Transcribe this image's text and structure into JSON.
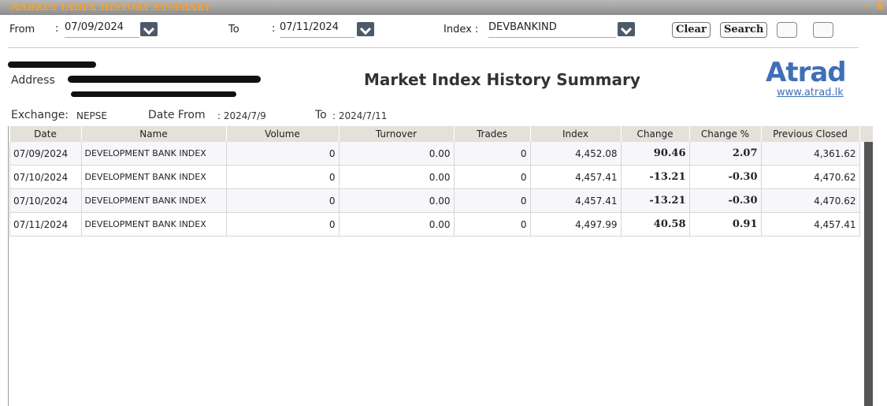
{
  "window": {
    "title": "MARKET INDEX HISTORY SUMMARY",
    "minimize": "-",
    "close": "X"
  },
  "filters": {
    "from": {
      "label": "From",
      "sep": ":",
      "value": "07/09/2024"
    },
    "to": {
      "label": "To",
      "sep": ":",
      "value": "07/11/2024"
    },
    "index": {
      "label": "Index :",
      "value": "DEVBANKIND"
    },
    "clear": "Clear",
    "search": "Search"
  },
  "report": {
    "title": "Market Index History Summary",
    "address_label": "Address",
    "logo": "Atrad",
    "website": "www.atrad.lk",
    "exchange_label": "Exchange:",
    "exchange": "NEPSE",
    "date_from_label": "Date From",
    "date_from": ": 2024/7/9",
    "to_label": "To",
    "to": ": 2024/7/11"
  },
  "table": {
    "columns": [
      "Date",
      "Name",
      "Volume",
      "Turnover",
      "Trades",
      "Index",
      "Change",
      "Change %",
      "Previous Closed"
    ],
    "rows": [
      [
        "07/09/2024",
        "DEVELOPMENT BANK INDEX",
        "0",
        "0.00",
        "0",
        "4,452.08",
        "90.46",
        "2.07",
        "4,361.62"
      ],
      [
        "07/10/2024",
        "DEVELOPMENT BANK INDEX",
        "0",
        "0.00",
        "0",
        "4,457.41",
        "-13.21",
        "-0.30",
        "4,470.62"
      ],
      [
        "07/10/2024",
        "DEVELOPMENT BANK INDEX",
        "0",
        "0.00",
        "0",
        "4,457.41",
        "-13.21",
        "-0.30",
        "4,470.62"
      ],
      [
        "07/11/2024",
        "DEVELOPMENT BANK INDEX",
        "0",
        "0.00",
        "0",
        "4,497.99",
        "40.58",
        "0.91",
        "4,457.41"
      ]
    ]
  }
}
